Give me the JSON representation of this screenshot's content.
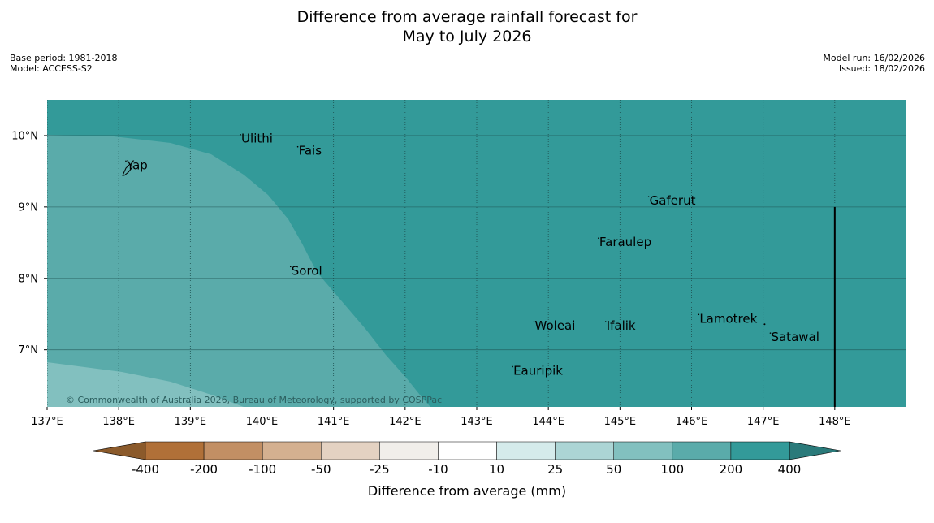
{
  "title": {
    "line1": "Difference from average rainfall forecast for",
    "line2": "May to July 2026"
  },
  "meta_left": {
    "base_period": "Base period: 1981-2018",
    "model": "Model: ACCESS-S2"
  },
  "meta_right": {
    "model_run": "Model run: 16/02/2026",
    "issued": "Issued: 18/02/2026"
  },
  "map": {
    "lon_range": [
      137,
      149
    ],
    "lat_range": [
      6.2,
      10.5
    ],
    "lon_ticks": [
      {
        "value": 137,
        "label": "137°E"
      },
      {
        "value": 138,
        "label": "138°E"
      },
      {
        "value": 139,
        "label": "139°E"
      },
      {
        "value": 140,
        "label": "140°E"
      },
      {
        "value": 141,
        "label": "141°E"
      },
      {
        "value": 142,
        "label": "142°E"
      },
      {
        "value": 143,
        "label": "143°E"
      },
      {
        "value": 144,
        "label": "144°E"
      },
      {
        "value": 145,
        "label": "145°E"
      },
      {
        "value": 146,
        "label": "146°E"
      },
      {
        "value": 147,
        "label": "147°E"
      },
      {
        "value": 148,
        "label": "148°E"
      }
    ],
    "lat_ticks": [
      {
        "value": 10,
        "label": "10°N"
      },
      {
        "value": 9,
        "label": "9°N"
      },
      {
        "value": 8,
        "label": "8°N"
      },
      {
        "value": 7,
        "label": "7°N"
      }
    ],
    "places": [
      {
        "name": "Yap",
        "lon": 138.1,
        "lat": 9.53
      },
      {
        "name": "Ulithi",
        "lon": 139.7,
        "lat": 9.9
      },
      {
        "name": "Fais",
        "lon": 140.5,
        "lat": 9.73
      },
      {
        "name": "Gaferut",
        "lon": 145.4,
        "lat": 9.03
      },
      {
        "name": "Faraulep",
        "lon": 144.7,
        "lat": 8.45
      },
      {
        "name": "Sorol",
        "lon": 140.4,
        "lat": 8.05
      },
      {
        "name": "Lamotrek",
        "lon": 146.1,
        "lat": 7.38
      },
      {
        "name": "Woleai",
        "lon": 143.8,
        "lat": 7.28
      },
      {
        "name": "Ifalik",
        "lon": 144.8,
        "lat": 7.28
      },
      {
        "name": "Satawal",
        "lon": 147.1,
        "lat": 7.12
      },
      {
        "name": "Eauripik",
        "lon": 143.5,
        "lat": 6.65
      }
    ],
    "boundary_line": {
      "lon": 148,
      "lat_from": 6.2,
      "lat_to": 9.0
    },
    "copyright": "© Commonwealth of Australia 2026, Bureau of Meteorology, supported by COSPPac",
    "colors": {
      "band_200_400": "#339a99",
      "band_100_200": "#5aabaa",
      "band_50_100": "#82c0bf"
    }
  },
  "colorbar": {
    "label": "Difference from average (mm)",
    "ticks": [
      "-400",
      "-200",
      "-100",
      "-50",
      "-25",
      "-10",
      "10",
      "25",
      "50",
      "100",
      "200",
      "400"
    ],
    "colors": [
      "#b07038",
      "#c28f64",
      "#d4b090",
      "#e4d2c2",
      "#f1eeea",
      "#ffffff",
      "#d5ebeb",
      "#acd5d5",
      "#82c0bf",
      "#5aabaa",
      "#339a99"
    ],
    "extend_low": "#8b5a2b",
    "extend_high": "#2a7a7a"
  }
}
